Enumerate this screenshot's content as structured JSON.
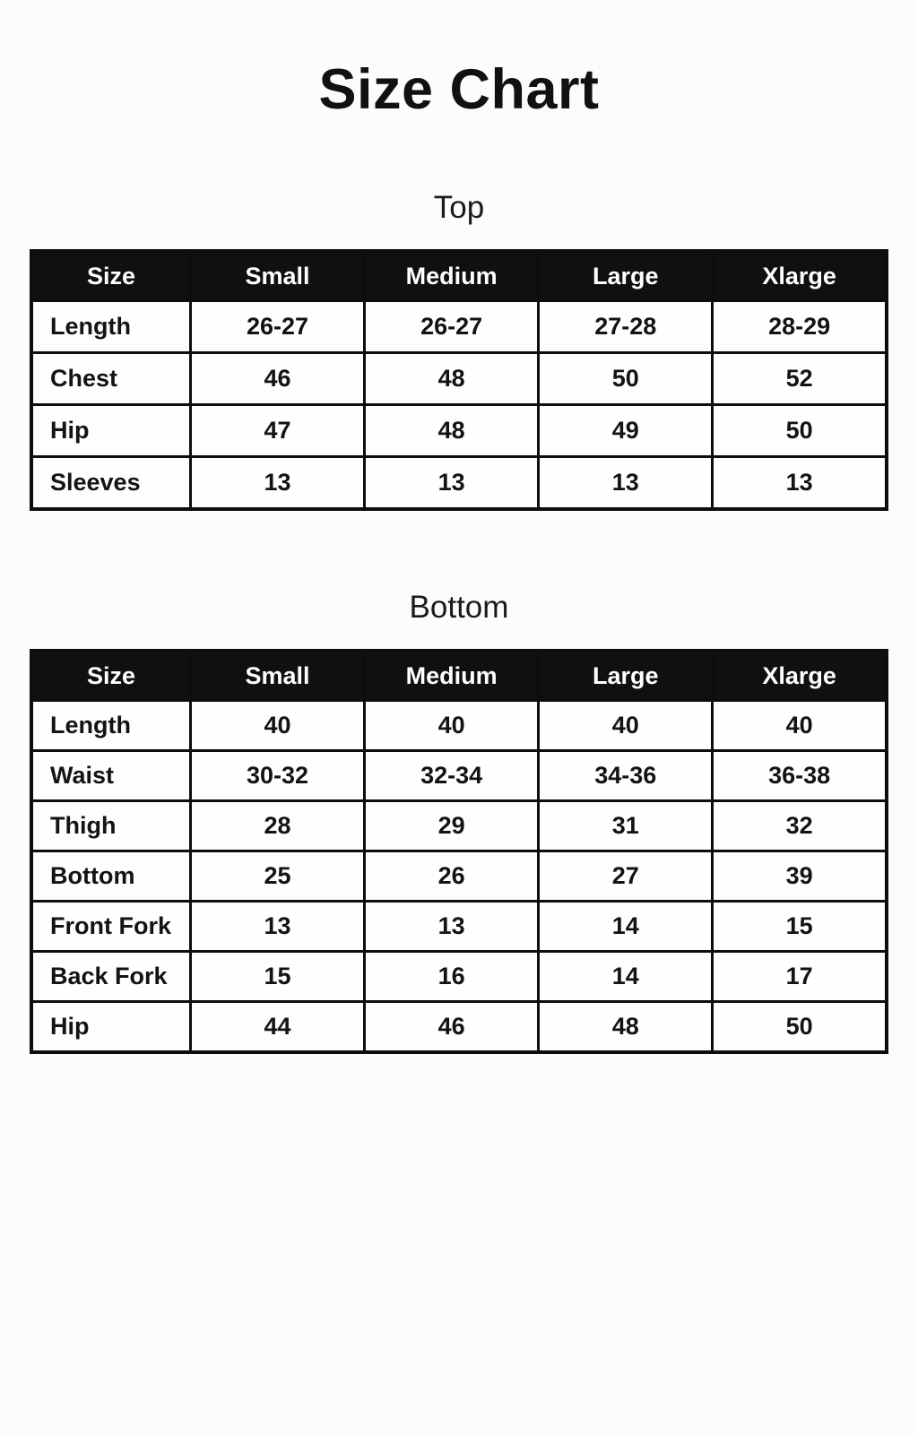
{
  "page": {
    "title": "Size Chart",
    "background_color": "#fcfcfc",
    "header_row_bg": "#101010",
    "header_row_text_color": "#ffffff",
    "grid_border_color": "#0d0d0d"
  },
  "sections": [
    {
      "label": "Top",
      "columns": [
        "Size",
        "Small",
        "Medium",
        "Large",
        "Xlarge"
      ],
      "rows": [
        {
          "label": "Length",
          "values": [
            "26-27",
            "26-27",
            "27-28",
            "28-29"
          ]
        },
        {
          "label": "Chest",
          "values": [
            "46",
            "48",
            "50",
            "52"
          ]
        },
        {
          "label": "Hip",
          "values": [
            "47",
            "48",
            "49",
            "50"
          ]
        },
        {
          "label": "Sleeves",
          "values": [
            "13",
            "13",
            "13",
            "13"
          ]
        }
      ]
    },
    {
      "label": "Bottom",
      "columns": [
        "Size",
        "Small",
        "Medium",
        "Large",
        "Xlarge"
      ],
      "rows": [
        {
          "label": "Length",
          "values": [
            "40",
            "40",
            "40",
            "40"
          ]
        },
        {
          "label": "Waist",
          "values": [
            "30-32",
            "32-34",
            "34-36",
            "36-38"
          ]
        },
        {
          "label": "Thigh",
          "values": [
            "28",
            "29",
            "31",
            "32"
          ]
        },
        {
          "label": "Bottom",
          "values": [
            "25",
            "26",
            "27",
            "39"
          ]
        },
        {
          "label": "Front Fork",
          "values": [
            "13",
            "13",
            "14",
            "15"
          ]
        },
        {
          "label": "Back Fork",
          "values": [
            "15",
            "16",
            "14",
            "17"
          ]
        },
        {
          "label": "Hip",
          "values": [
            "44",
            "46",
            "48",
            "50"
          ]
        }
      ]
    }
  ]
}
